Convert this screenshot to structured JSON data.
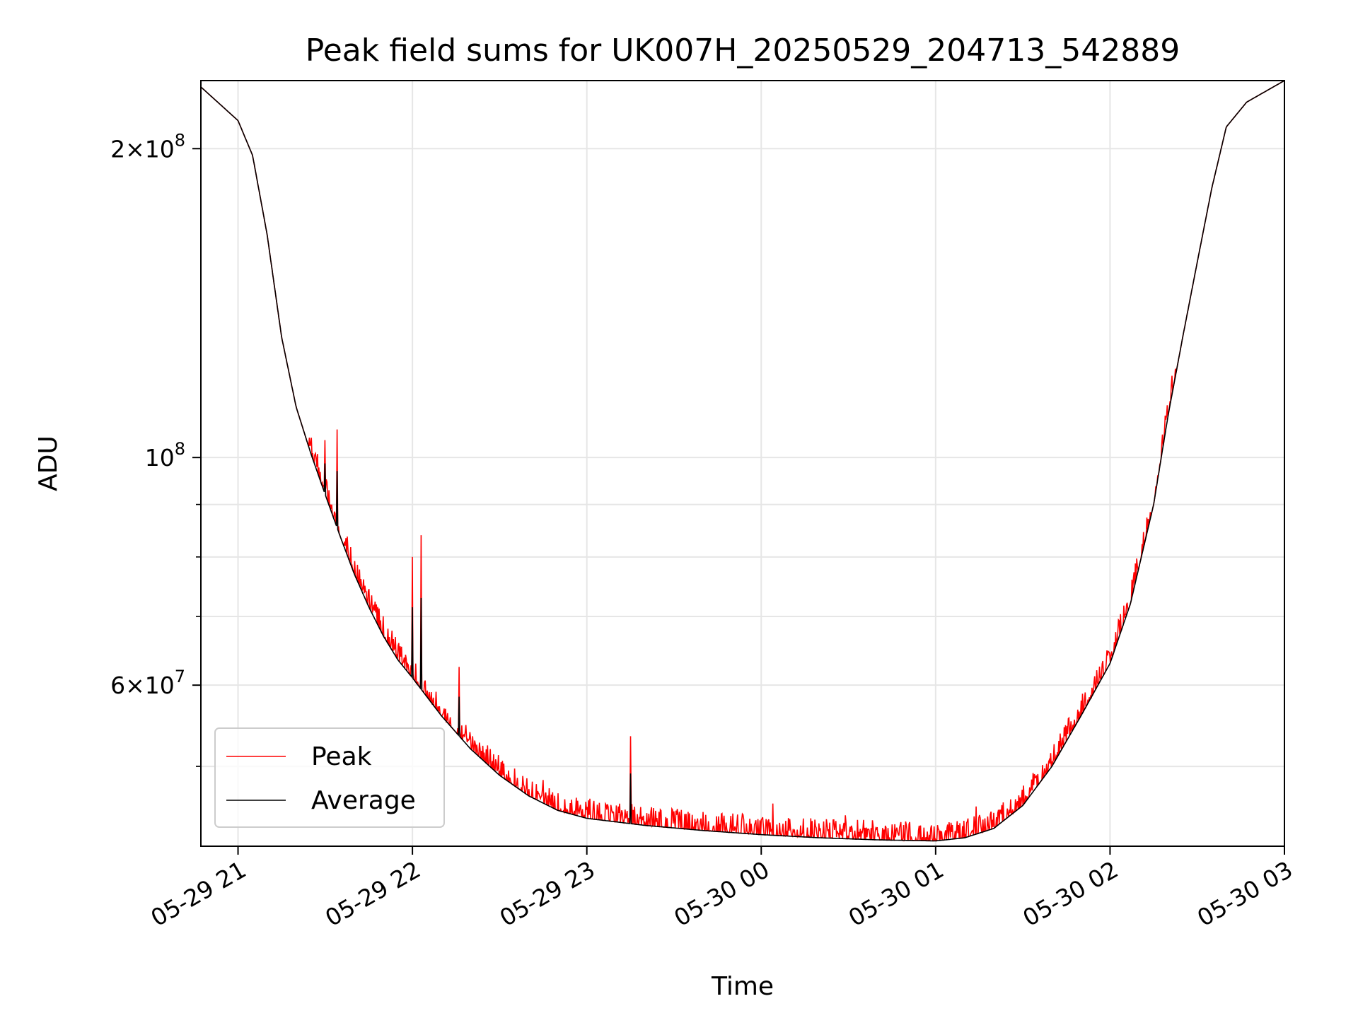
{
  "chart_data": {
    "type": "line",
    "title": "Peak field sums for UK007H_20250529_204713_542889",
    "xlabel": "Time",
    "ylabel": "ADU",
    "y_scale": "log",
    "ylim": [
      41800000,
      233000000
    ],
    "xlim": [
      "2025-05-29 20:47:13",
      "2025-05-30 03:00:00"
    ],
    "x_tick_labels": [
      "05-29 21",
      "05-29 22",
      "05-29 23",
      "05-30 00",
      "05-30 01",
      "05-30 02",
      "05-30 03"
    ],
    "x_ticks": [
      "2025-05-29 21:00",
      "2025-05-29 22:00",
      "2025-05-29 23:00",
      "2025-05-30 00:00",
      "2025-05-30 01:00",
      "2025-05-30 02:00",
      "2025-05-30 03:00"
    ],
    "y_tick_labels": [
      {
        "value": 200000000,
        "mantissa": "2",
        "exponent": "8"
      },
      {
        "value": 100000000,
        "mantissa": "",
        "exponent": "8"
      },
      {
        "value": 60000000,
        "mantissa": "6",
        "exponent": "7"
      }
    ],
    "y_minor_ticks": [
      50000000,
      70000000,
      80000000,
      90000000
    ],
    "grid": true,
    "legend_position": "lower-left",
    "series": [
      {
        "name": "Average",
        "color": "#000000",
        "x": [
          "2025-05-29 20:47",
          "2025-05-29 21:00",
          "2025-05-29 21:05",
          "2025-05-29 21:10",
          "2025-05-29 21:15",
          "2025-05-29 21:20",
          "2025-05-29 21:25",
          "2025-05-29 21:30",
          "2025-05-29 21:35",
          "2025-05-29 21:40",
          "2025-05-29 21:45",
          "2025-05-29 21:50",
          "2025-05-29 21:55",
          "2025-05-29 22:00",
          "2025-05-29 22:10",
          "2025-05-29 22:20",
          "2025-05-29 22:30",
          "2025-05-29 22:40",
          "2025-05-29 22:50",
          "2025-05-29 23:00",
          "2025-05-29 23:20",
          "2025-05-29 23:40",
          "2025-05-30 00:00",
          "2025-05-30 00:20",
          "2025-05-30 00:40",
          "2025-05-30 01:00",
          "2025-05-30 01:10",
          "2025-05-30 01:20",
          "2025-05-30 01:30",
          "2025-05-30 01:40",
          "2025-05-30 01:50",
          "2025-05-30 02:00",
          "2025-05-30 02:07",
          "2025-05-30 02:15",
          "2025-05-30 02:20",
          "2025-05-30 02:25",
          "2025-05-30 02:30",
          "2025-05-30 02:35",
          "2025-05-30 02:40",
          "2025-05-30 02:47",
          "2025-05-30 03:00"
        ],
        "values": [
          230000000,
          213000000,
          197000000,
          165000000,
          131000000,
          112000000,
          101000000,
          92000000,
          84000000,
          77000000,
          71500000,
          67000000,
          63500000,
          61000000,
          56000000,
          52000000,
          49000000,
          46800000,
          45300000,
          44500000,
          43800000,
          43300000,
          42900000,
          42600000,
          42400000,
          42300000,
          42600000,
          43500000,
          45800000,
          50000000,
          56000000,
          63000000,
          72000000,
          90000000,
          110000000,
          131000000,
          155000000,
          183000000,
          210000000,
          222000000,
          233000000
        ]
      },
      {
        "name": "Peak",
        "color": "#ff0000",
        "x": [
          "2025-05-29 21:30",
          "2025-05-29 21:34",
          "2025-05-29 22:00",
          "2025-05-29 22:03",
          "2025-05-29 22:16",
          "2025-05-29 22:45",
          "2025-05-29 23:01",
          "2025-05-29 23:15",
          "2025-05-29 23:30",
          "2025-05-30 00:04",
          "2025-05-30 00:29",
          "2025-05-30 01:14"
        ],
        "values": [
          104000000,
          106500000,
          80000000,
          84000000,
          62500000,
          48500000,
          46500000,
          53500000,
          45200000,
          46000000,
          44800000,
          45700000
        ]
      }
    ]
  }
}
